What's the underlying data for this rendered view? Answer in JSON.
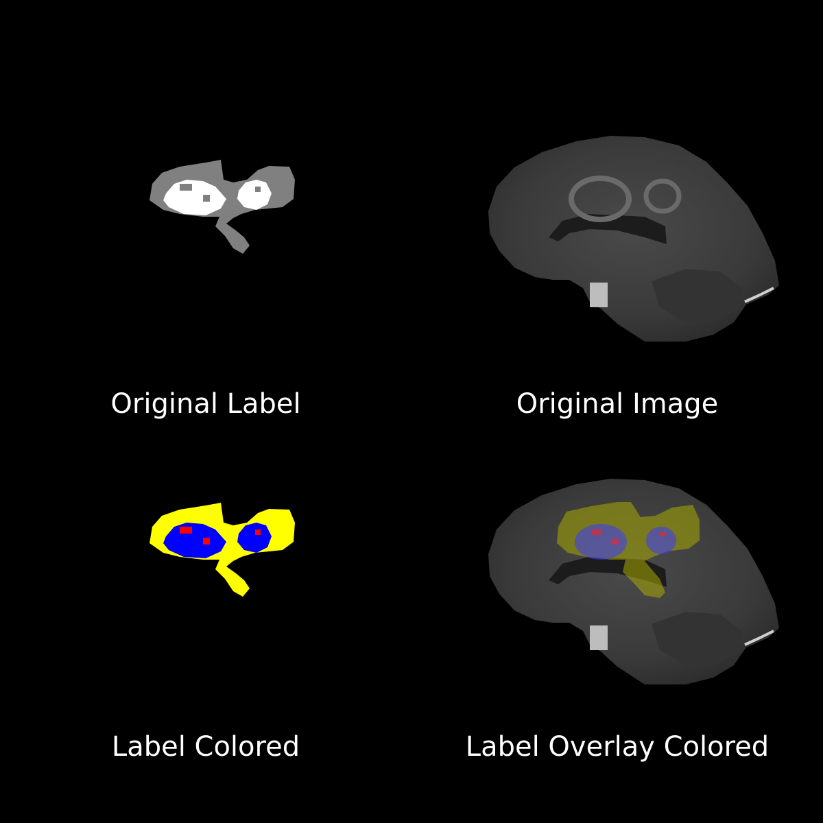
{
  "panels": [
    {
      "title": "Original Label"
    },
    {
      "title": "Original Image"
    },
    {
      "title": "Label Colored"
    },
    {
      "title": "Label Overlay Colored"
    }
  ],
  "colors": {
    "background": "#000000",
    "caption_text": "#ffffff",
    "label_edema_gray": "#808080",
    "label_core_white": "#ffffff",
    "colored_edema": "#ffff00",
    "colored_enhancing": "#0000ff",
    "colored_necrosis": "#ff0000",
    "mri_tissue": "#3a3a3a"
  }
}
